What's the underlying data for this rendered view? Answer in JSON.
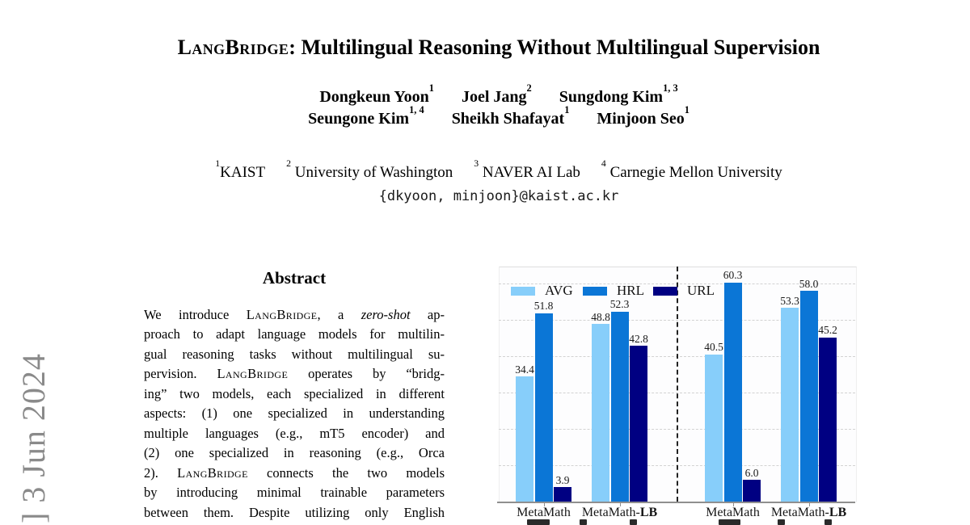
{
  "arxiv_stamp": {
    "visible_text": "] 3 Jun 2024"
  },
  "paper": {
    "title": "LangBridge: Multilingual Reasoning Without Multilingual Supervision",
    "authors_line1": [
      {
        "name": "Dongkeun Yoon",
        "sup": "1"
      },
      {
        "name": "Joel Jang",
        "sup": "2"
      },
      {
        "name": "Sungdong Kim",
        "sup": "1, 3"
      }
    ],
    "authors_line2": [
      {
        "name": "Seungone Kim",
        "sup": "1, 4"
      },
      {
        "name": "Sheikh Shafayat",
        "sup": "1"
      },
      {
        "name": "Minjoon Seo",
        "sup": "1"
      }
    ],
    "affiliations": [
      {
        "sup": "1",
        "name": "KAIST"
      },
      {
        "sup": "2",
        "name": "University of Washington"
      },
      {
        "sup": "3",
        "name": "NAVER AI Lab"
      },
      {
        "sup": "4",
        "name": "Carnegie Mellon University"
      }
    ],
    "email": "{dkyoon, minjoon}@kaist.ac.kr",
    "abstract": {
      "heading": "Abstract",
      "lines": [
        "We introduce LangBridge, a zero-shot ap-",
        "proach to adapt language models for multilin-",
        "gual reasoning tasks without multilingual su-",
        "pervision. LangBridge operates by “bridg-",
        "ing” two models, each specialized in different",
        "aspects: (1) one specialized in understanding",
        "multiple languages (e.g., mT5 encoder) and",
        "(2) one specialized in reasoning (e.g., Orca",
        "2).  LangBridge connects the two models",
        "by introducing minimal trainable parameters",
        "between them. Despite utilizing only English"
      ]
    }
  },
  "chart_data": {
    "type": "bar",
    "title": "",
    "xlabel": "",
    "ylabel": "",
    "categories": [
      "MetaMath",
      "MetaMath-LB",
      "MetaMath",
      "MetaMath-LB"
    ],
    "series": [
      {
        "name": "AVG",
        "color": "#87CEFA",
        "values": [
          34.4,
          48.8,
          40.5,
          53.3
        ]
      },
      {
        "name": "HRL",
        "color": "#0B76D6",
        "values": [
          51.8,
          52.3,
          60.3,
          58.0
        ]
      },
      {
        "name": "URL",
        "color": "#000082",
        "values": [
          3.9,
          42.8,
          6.0,
          45.2
        ]
      }
    ],
    "ylim": [
      0,
      65
    ],
    "gridline_step": 10,
    "grid": "dashed-horizontal",
    "legend_position": "top-left-inside",
    "panel_separator_after_category_index": 1,
    "value_labels_shown": true
  }
}
